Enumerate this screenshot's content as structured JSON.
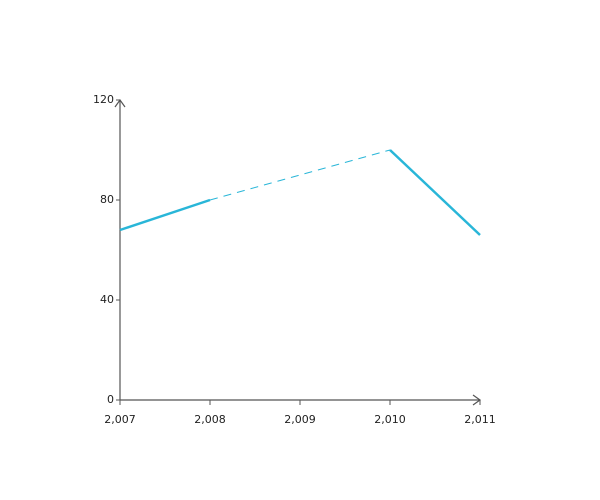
{
  "chart_data": {
    "type": "line",
    "x": [
      2007,
      2008,
      2009,
      2010,
      2011
    ],
    "series": [
      {
        "color": "#29b6d8",
        "values": [
          68,
          80,
          null,
          100,
          66
        ]
      }
    ],
    "xlim": [
      2007,
      2011
    ],
    "xticks": [
      {
        "value": 2007,
        "label": "2,007"
      },
      {
        "value": 2008,
        "label": "2,008"
      },
      {
        "value": 2009,
        "label": "2,009"
      },
      {
        "value": 2010,
        "label": "2,010"
      },
      {
        "value": 2011,
        "label": "2,011"
      }
    ],
    "ylim": [
      0,
      120
    ],
    "yticks": [
      0,
      40,
      80,
      120
    ],
    "gap_style": "dashed"
  }
}
